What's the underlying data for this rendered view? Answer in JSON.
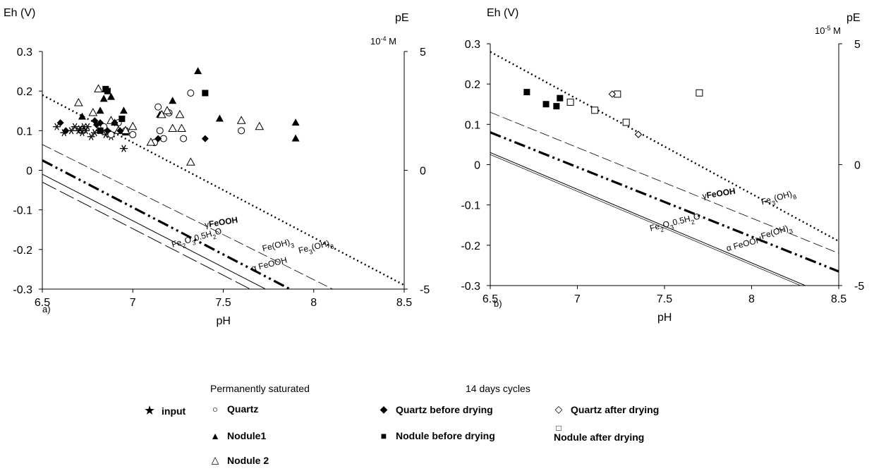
{
  "chart_data": [
    {
      "id": "a",
      "type": "scatter",
      "panel_label": "a)",
      "xlabel": "pH",
      "ylabel": "Eh (V)",
      "y2label": "pE",
      "concentration": "10-4 M",
      "xlim": [
        6.5,
        8.5
      ],
      "ylim": [
        -0.3,
        0.3
      ],
      "y2lim": [
        -5,
        5
      ],
      "xticks": [
        "6.5",
        "7",
        "7.5",
        "8",
        "8.5"
      ],
      "yticks": [
        "0.3",
        "0.2",
        "0.1",
        "0",
        "-0.1",
        "-0.2",
        "-0.3"
      ],
      "y2ticks": [
        "5",
        "0",
        "-5"
      ],
      "lines": [
        {
          "name": "Fe3(OH)8",
          "style": "dotted",
          "x": [
            6.5,
            8.5
          ],
          "y": [
            0.19,
            -0.29
          ]
        },
        {
          "name": "γFeOOH",
          "style": "dashed-thin",
          "x": [
            6.5,
            8.5
          ],
          "y": [
            0.065,
            -0.39
          ]
        },
        {
          "name": "Fe(OH)3",
          "style": "dash-dot",
          "x": [
            6.5,
            8.5
          ],
          "y": [
            0.025,
            -0.45
          ]
        },
        {
          "name": "Fe2O3.0.5H2O",
          "style": "solid",
          "x": [
            6.5,
            8.5
          ],
          "y": [
            -0.01,
            -0.48
          ]
        },
        {
          "name": "α FeOOH",
          "style": "dashed-long",
          "x": [
            6.5,
            8.5
          ],
          "y": [
            -0.03,
            -0.5
          ]
        }
      ],
      "line_labels": [
        {
          "text": "Fe3(OH)8",
          "x": 7.92,
          "y": -0.21,
          "rot": -14
        },
        {
          "text": "γFeOOH",
          "x": 7.4,
          "y": -0.145,
          "rot": -9
        },
        {
          "text": "Fe(OH)3",
          "x": 7.72,
          "y": -0.205,
          "rot": -14
        },
        {
          "text": "Fe2O3.0.5H2O",
          "x": 7.22,
          "y": -0.195,
          "rot": -16
        },
        {
          "text": "α FeOOH",
          "x": 7.66,
          "y": -0.255,
          "rot": -14
        }
      ],
      "series": [
        {
          "name": "input",
          "marker": "asterisk",
          "x": [
            6.58,
            6.62,
            6.66,
            6.68,
            6.7,
            6.71,
            6.72,
            6.73,
            6.74,
            6.75,
            6.77,
            6.79,
            6.82,
            6.85,
            6.88,
            6.95
          ],
          "y": [
            0.11,
            0.095,
            0.1,
            0.11,
            0.1,
            0.105,
            0.095,
            0.11,
            0.1,
            0.11,
            0.085,
            0.095,
            0.1,
            0.09,
            0.085,
            0.055
          ]
        },
        {
          "name": "Quartz",
          "marker": "circle-open",
          "x": [
            6.84,
            6.88,
            6.92,
            6.96,
            7.0,
            7.12,
            7.14,
            7.15,
            7.17,
            7.2,
            7.28,
            7.32,
            7.6
          ],
          "y": [
            0.11,
            0.09,
            0.12,
            0.1,
            0.09,
            0.07,
            0.16,
            0.1,
            0.08,
            0.145,
            0.08,
            0.195,
            0.1
          ]
        },
        {
          "name": "Nodule1",
          "marker": "triangle-filled",
          "x": [
            6.72,
            6.82,
            6.84,
            6.88,
            6.9,
            6.92,
            6.95,
            6.96,
            7.15,
            7.22,
            7.36,
            7.48,
            7.9,
            7.9
          ],
          "y": [
            0.135,
            0.15,
            0.18,
            0.185,
            0.12,
            0.1,
            0.15,
            0.095,
            0.14,
            0.175,
            0.25,
            0.13,
            0.12,
            0.08
          ]
        },
        {
          "name": "Nodule 2",
          "marker": "triangle-open",
          "x": [
            6.7,
            6.78,
            6.81,
            6.88,
            6.92,
            6.96,
            7.0,
            7.1,
            7.16,
            7.19,
            7.22,
            7.26,
            7.27,
            7.32,
            7.6,
            7.7
          ],
          "y": [
            0.17,
            0.145,
            0.205,
            0.125,
            0.1,
            0.1,
            0.11,
            0.07,
            0.14,
            0.15,
            0.105,
            0.14,
            0.105,
            0.02,
            0.125,
            0.11
          ]
        },
        {
          "name": "Quartz before drying",
          "marker": "diamond-filled",
          "x": [
            6.6,
            6.63,
            6.79,
            6.8,
            6.82,
            6.86,
            6.9,
            6.93,
            7.14,
            7.4
          ],
          "y": [
            0.12,
            0.1,
            0.125,
            0.115,
            0.12,
            0.1,
            0.12,
            0.1,
            0.08,
            0.08
          ]
        },
        {
          "name": "Nodule before drying",
          "marker": "square-filled",
          "x": [
            6.82,
            6.85,
            6.86,
            6.94,
            7.4
          ],
          "y": [
            0.1,
            0.205,
            0.2,
            0.13,
            0.195
          ]
        }
      ]
    },
    {
      "id": "b",
      "type": "scatter",
      "panel_label": "b)",
      "xlabel": "pH",
      "ylabel": "Eh (V)",
      "y2label": "pE",
      "concentration": "10-5 M",
      "xlim": [
        6.5,
        8.5
      ],
      "ylim": [
        -0.3,
        0.3
      ],
      "y2lim": [
        -5,
        5
      ],
      "xticks": [
        "6.5",
        "7",
        "7.5",
        "8",
        "8.5"
      ],
      "yticks": [
        "0.3",
        "0.2",
        "0.1",
        "0",
        "-0.1",
        "-0.2",
        "-0.3"
      ],
      "y2ticks": [
        "5",
        "0",
        "-5"
      ],
      "lines": [
        {
          "name": "Fe3(OH)8",
          "style": "dotted",
          "x": [
            6.5,
            8.5
          ],
          "y": [
            0.28,
            -0.19
          ]
        },
        {
          "name": "γFeOOH",
          "style": "dashed-thin",
          "x": [
            6.5,
            8.5
          ],
          "y": [
            0.13,
            -0.22
          ]
        },
        {
          "name": "Fe(OH)3",
          "style": "dash-dot",
          "x": [
            6.5,
            8.5
          ],
          "y": [
            0.08,
            -0.265
          ]
        },
        {
          "name": "Fe2O3.0.5H2O",
          "style": "solid",
          "x": [
            6.5,
            8.5
          ],
          "y": [
            0.03,
            -0.335
          ]
        },
        {
          "name": "α FeOOH",
          "style": "solid-thin",
          "x": [
            6.5,
            8.5
          ],
          "y": [
            0.025,
            -0.34
          ]
        }
      ],
      "line_labels": [
        {
          "text": "Fe3(OH)8",
          "x": 8.06,
          "y": -0.1,
          "rot": -16
        },
        {
          "text": "γFeOOH",
          "x": 7.72,
          "y": -0.085,
          "rot": -9
        },
        {
          "text": "Fe(OH)3",
          "x": 8.06,
          "y": -0.185,
          "rot": -18
        },
        {
          "text": "Fe2O3.0.5H2O",
          "x": 7.42,
          "y": -0.165,
          "rot": -14
        },
        {
          "text": "α FeOOH",
          "x": 7.86,
          "y": -0.215,
          "rot": -15
        }
      ],
      "series": [
        {
          "name": "Nodule before drying",
          "marker": "square-filled",
          "x": [
            6.71,
            6.82,
            6.88,
            6.9
          ],
          "y": [
            0.18,
            0.15,
            0.145,
            0.165
          ]
        },
        {
          "name": "Nodule after drying",
          "marker": "square-open",
          "x": [
            6.96,
            7.1,
            7.23,
            7.28,
            7.7
          ],
          "y": [
            0.155,
            0.135,
            0.175,
            0.105,
            0.178
          ]
        },
        {
          "name": "Quartz after drying",
          "marker": "diamond-open",
          "x": [
            7.2,
            7.35
          ],
          "y": [
            0.175,
            0.075
          ]
        }
      ]
    }
  ],
  "legend": {
    "header_permanent": "Permanently saturated",
    "header_cycles": "14 days cycles",
    "items": [
      {
        "key": "input",
        "label": "input"
      },
      {
        "key": "quartz",
        "label": "Quartz"
      },
      {
        "key": "nodule1",
        "label": "Nodule1"
      },
      {
        "key": "nodule2",
        "label": "Nodule 2"
      },
      {
        "key": "qbd",
        "label": "Quartz before drying"
      },
      {
        "key": "nbd",
        "label": "Nodule before drying"
      },
      {
        "key": "qad",
        "label": "Quartz after drying"
      },
      {
        "key": "nad",
        "label": "Nodule after drying"
      }
    ],
    "symbols": {
      "input": "★",
      "quartz": "○",
      "nodule1": "▲",
      "nodule2": "△",
      "qbd": "◆",
      "nbd": "■",
      "qad": "◇",
      "nad": "□"
    }
  }
}
